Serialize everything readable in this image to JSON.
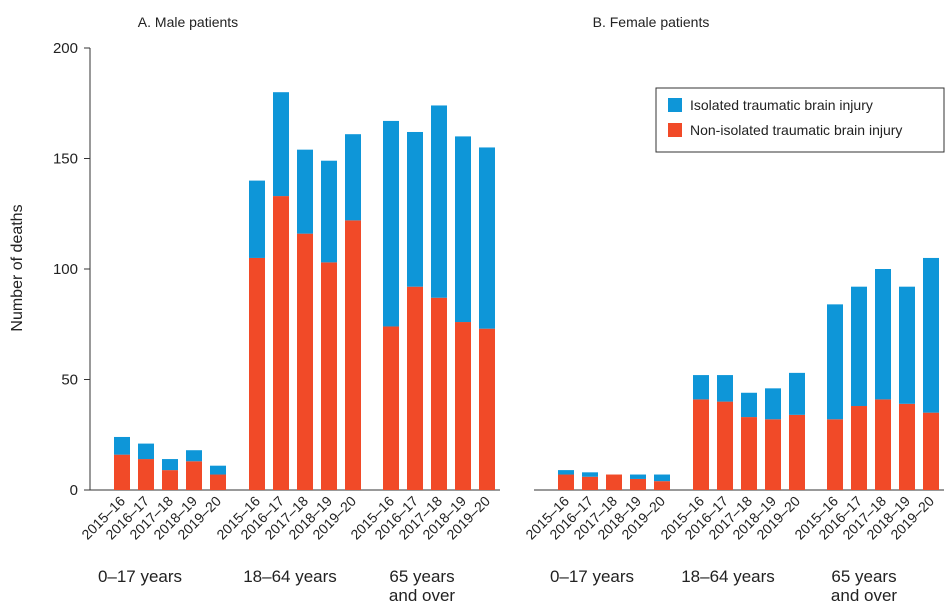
{
  "colors": {
    "isolated": "#0e96d8",
    "non_isolated": "#f14a28",
    "axis": "#333333"
  },
  "chart_data": {
    "type": "bar",
    "stacked": true,
    "ylabel": "Number of deaths",
    "ylim": [
      0,
      200
    ],
    "yticks": [
      0,
      50,
      100,
      150,
      200
    ],
    "legend": {
      "position": "top-right",
      "entries": [
        "Isolated traumatic brain injury",
        "Non-isolated traumatic brain injury"
      ]
    },
    "years": [
      "2015–16",
      "2016–17",
      "2017–18",
      "2018–19",
      "2019–20"
    ],
    "group_labels": [
      [
        "0–17 years"
      ],
      [
        "18–64 years"
      ],
      [
        "65 years",
        "and over"
      ]
    ],
    "panels": [
      {
        "title": "A. Male patients",
        "groups": [
          {
            "non_isolated": [
              16,
              14,
              9,
              13,
              7
            ],
            "isolated": [
              8,
              7,
              5,
              5,
              4
            ]
          },
          {
            "non_isolated": [
              105,
              133,
              116,
              103,
              122
            ],
            "isolated": [
              35,
              47,
              38,
              46,
              39
            ]
          },
          {
            "non_isolated": [
              74,
              92,
              87,
              76,
              73
            ],
            "isolated": [
              93,
              70,
              87,
              84,
              82
            ]
          }
        ]
      },
      {
        "title": "B. Female patients",
        "groups": [
          {
            "non_isolated": [
              7,
              6,
              7,
              5,
              4
            ],
            "isolated": [
              2,
              2,
              0,
              2,
              3
            ]
          },
          {
            "non_isolated": [
              41,
              40,
              33,
              32,
              34
            ],
            "isolated": [
              11,
              12,
              11,
              14,
              19
            ]
          },
          {
            "non_isolated": [
              32,
              38,
              41,
              39,
              35
            ],
            "isolated": [
              52,
              54,
              59,
              53,
              70
            ]
          }
        ]
      }
    ]
  }
}
